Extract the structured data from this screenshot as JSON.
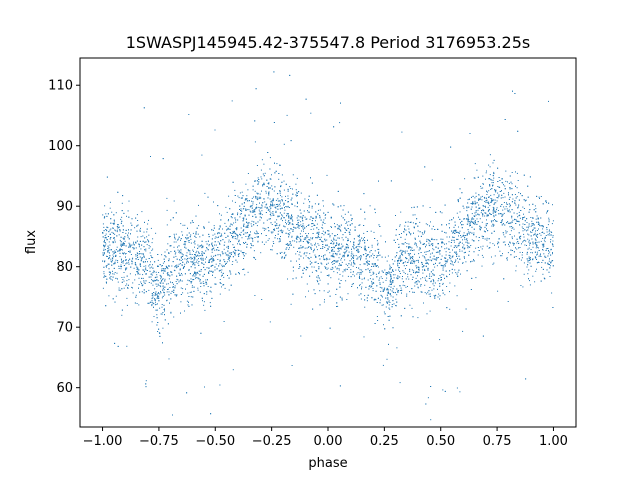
{
  "chart_data": {
    "type": "scatter",
    "title": "1SWASPJ145945.42-375547.8 Period 3176953.25s",
    "xlabel": "phase",
    "ylabel": "flux",
    "xlim": [
      -1.1,
      1.1
    ],
    "ylim": [
      53.5,
      114.5
    ],
    "xticks": [
      -1.0,
      -0.75,
      -0.5,
      -0.25,
      0.0,
      0.25,
      0.5,
      0.75,
      1.0
    ],
    "xtick_labels": [
      "−1.00",
      "−0.75",
      "−0.50",
      "−0.25",
      "0.00",
      "0.25",
      "0.50",
      "0.75",
      "1.00"
    ],
    "yticks": [
      60,
      70,
      80,
      90,
      100,
      110
    ],
    "ytick_labels": [
      "60",
      "70",
      "80",
      "90",
      "100",
      "110"
    ],
    "grid": false,
    "marker_color": "#1f77b4",
    "profile": {
      "description_points_phase": [
        -1.0,
        -0.95,
        -0.9,
        -0.85,
        -0.8,
        -0.75,
        -0.7,
        -0.65,
        -0.6,
        -0.55,
        -0.5,
        -0.45,
        -0.4,
        -0.35,
        -0.3,
        -0.25,
        -0.2,
        -0.15,
        -0.1,
        -0.05,
        0.0
      ],
      "description_points_flux": [
        83,
        82.5,
        82,
        81.5,
        80,
        76,
        79,
        82,
        81,
        80.5,
        81,
        83,
        85,
        88,
        89.5,
        90,
        88.5,
        86,
        85,
        84,
        83
      ]
    }
  }
}
